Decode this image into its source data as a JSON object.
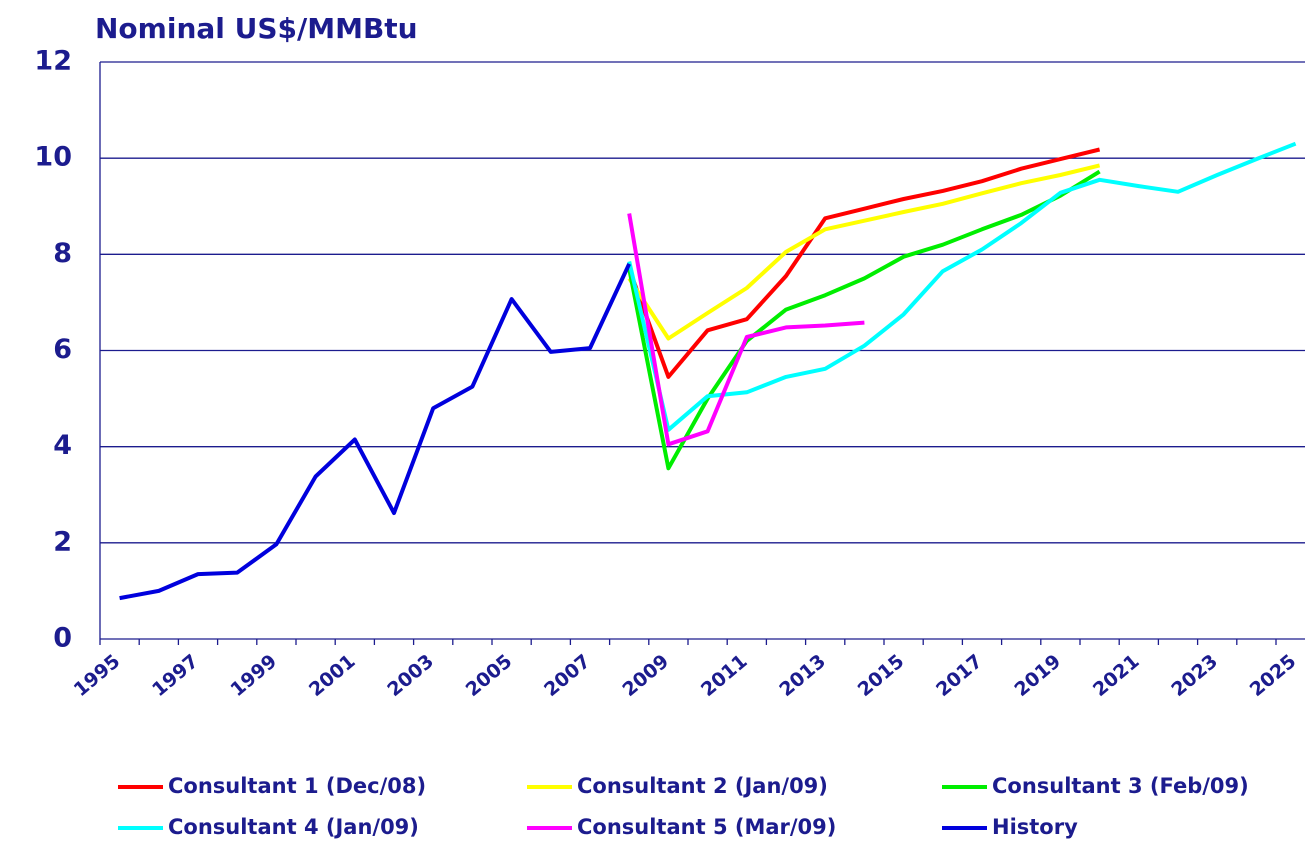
{
  "chart_data": {
    "type": "line",
    "title": "Nominal US$/MMBtu",
    "categories": [
      "1995",
      null,
      "1997",
      null,
      "1999",
      null,
      "2001",
      null,
      "2003",
      null,
      "2005",
      null,
      "2007",
      null,
      "2009",
      null,
      "2011",
      null,
      "2013",
      null,
      "2015",
      null,
      "2017",
      null,
      "2019",
      null,
      "2021",
      null,
      "2023",
      null,
      "2025"
    ],
    "series": [
      {
        "name": "Consultant 1 (Dec/08)",
        "color": "#ff0000",
        "values": [
          null,
          null,
          null,
          null,
          null,
          null,
          null,
          null,
          null,
          null,
          null,
          null,
          null,
          7.7,
          5.45,
          6.42,
          6.65,
          7.55,
          8.75,
          8.95,
          9.15,
          9.32,
          9.52,
          9.78,
          9.98,
          10.18,
          null,
          null,
          null,
          null,
          null
        ]
      },
      {
        "name": "Consultant 2 (Jan/09)",
        "color": "#ffff00",
        "values": [
          null,
          null,
          null,
          null,
          null,
          null,
          null,
          null,
          null,
          null,
          null,
          null,
          null,
          7.5,
          6.25,
          6.78,
          7.3,
          8.05,
          8.52,
          8.7,
          8.88,
          9.05,
          9.27,
          9.48,
          9.65,
          9.85,
          null,
          null,
          null,
          null,
          null
        ]
      },
      {
        "name": "Consultant 3 (Feb/09)",
        "color": "#00ee00",
        "values": [
          null,
          null,
          null,
          null,
          null,
          null,
          null,
          null,
          null,
          null,
          null,
          null,
          null,
          7.7,
          3.55,
          5.0,
          6.2,
          6.85,
          7.15,
          7.5,
          7.95,
          8.2,
          8.52,
          8.82,
          9.22,
          9.72,
          null,
          null,
          null,
          null,
          null
        ]
      },
      {
        "name": "Consultant 4 (Jan/09)",
        "color": "#00ffff",
        "values": [
          null,
          null,
          null,
          null,
          null,
          null,
          null,
          null,
          null,
          null,
          null,
          null,
          null,
          7.85,
          4.35,
          5.05,
          5.13,
          5.45,
          5.62,
          6.1,
          6.75,
          7.65,
          8.1,
          8.65,
          9.28,
          9.55,
          9.42,
          9.3,
          9.65,
          9.98,
          10.3
        ]
      },
      {
        "name": "Consultant 5 (Mar/09)",
        "color": "#ff00ff",
        "values": [
          null,
          null,
          null,
          null,
          null,
          null,
          null,
          null,
          null,
          null,
          null,
          null,
          null,
          8.85,
          4.05,
          4.32,
          6.28,
          6.48,
          6.52,
          6.58,
          null,
          null,
          null,
          null,
          null,
          null,
          null,
          null,
          null,
          null,
          null
        ]
      },
      {
        "name": "History",
        "color": "#0000dd",
        "values": [
          0.85,
          1.0,
          1.35,
          1.38,
          1.97,
          3.38,
          4.15,
          2.62,
          4.8,
          5.25,
          7.07,
          5.97,
          6.05,
          7.8,
          null,
          null,
          null,
          null,
          null,
          null,
          null,
          null,
          null,
          null,
          null,
          null,
          null,
          null,
          null,
          null,
          null
        ]
      }
    ],
    "ylim": [
      0,
      12
    ],
    "yticks": [
      0,
      2,
      4,
      6,
      8,
      10,
      12
    ],
    "grid": true
  }
}
